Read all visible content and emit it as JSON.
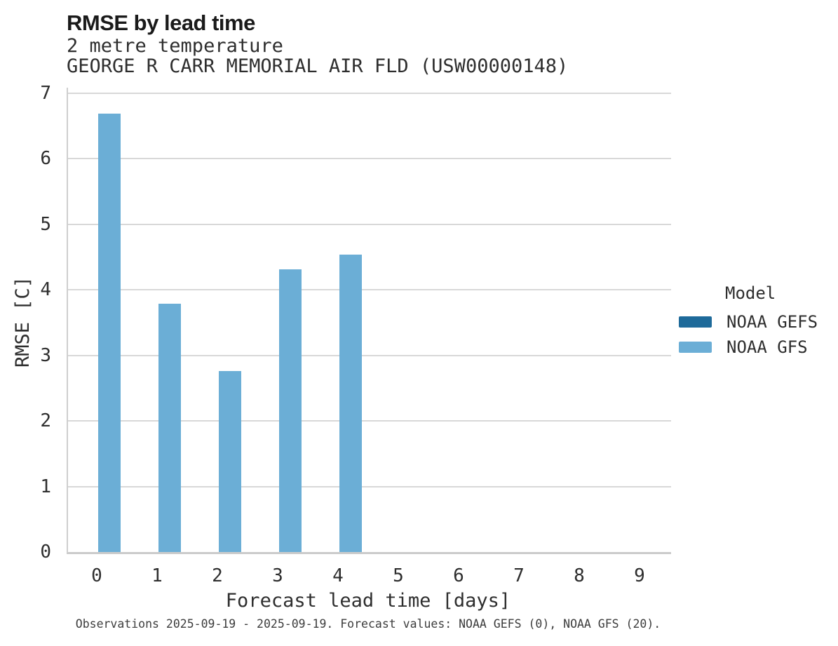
{
  "chart_data": {
    "type": "bar",
    "title": "RMSE by lead time",
    "subtitles": [
      "2 metre temperature",
      "GEORGE R CARR MEMORIAL AIR FLD (USW00000148)"
    ],
    "categories": [
      "0",
      "1",
      "2",
      "3",
      "4",
      "5",
      "6",
      "7",
      "8",
      "9"
    ],
    "series": [
      {
        "name": "NOAA GEFS",
        "color": "#1E6A9A",
        "values": [
          null,
          null,
          null,
          null,
          null,
          null,
          null,
          null,
          null,
          null
        ]
      },
      {
        "name": "NOAA GFS",
        "color": "#6BAED6",
        "values": [
          6.69,
          3.79,
          2.76,
          4.31,
          4.54,
          null,
          null,
          null,
          null,
          null
        ]
      }
    ],
    "xlabel": "Forecast lead time [days]",
    "ylabel": "RMSE [C]",
    "ylim": [
      0,
      7
    ],
    "yticks": [
      0,
      1,
      2,
      3,
      4,
      5,
      6,
      7
    ],
    "grid": true,
    "legend_title": "Model",
    "legend_position": "right"
  },
  "caption": "Observations 2025-09-19 - 2025-09-19. Forecast values: NOAA GEFS (0), NOAA GFS (20)."
}
